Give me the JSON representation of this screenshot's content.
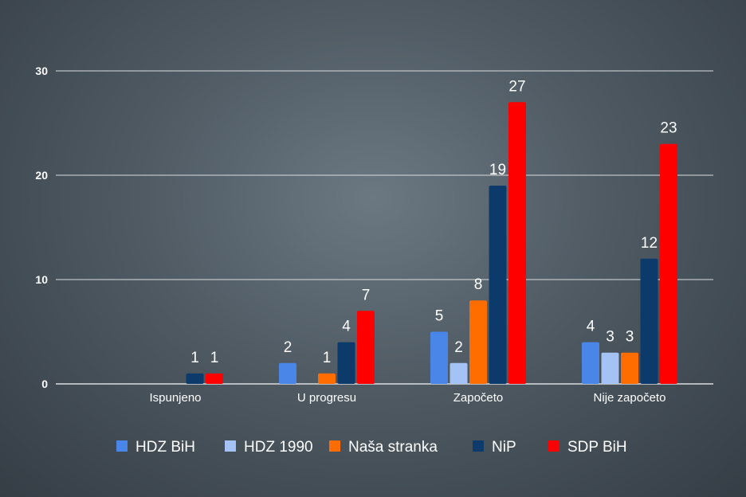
{
  "chart_data": {
    "type": "bar",
    "categories": [
      "Ispunjeno",
      "U progresu",
      "Započeto",
      "Nije započeto"
    ],
    "series": [
      {
        "name": "HDZ BiH",
        "color": "#4a86e8",
        "values": [
          null,
          2,
          5,
          4
        ]
      },
      {
        "name": "HDZ 1990",
        "color": "#a4c2f4",
        "values": [
          null,
          null,
          2,
          3
        ]
      },
      {
        "name": "Naša stranka",
        "color": "#ff6d01",
        "values": [
          null,
          1,
          8,
          3
        ]
      },
      {
        "name": "NiP",
        "color": "#0b3a6b",
        "values": [
          1,
          4,
          19,
          12
        ]
      },
      {
        "name": "SDP BiH",
        "color": "#ff0000",
        "values": [
          1,
          7,
          27,
          23
        ]
      }
    ],
    "ylim": [
      0,
      30
    ],
    "yticks": [
      0,
      10,
      20,
      30
    ],
    "grid": true,
    "legend": "bottom",
    "data_labels": true
  }
}
